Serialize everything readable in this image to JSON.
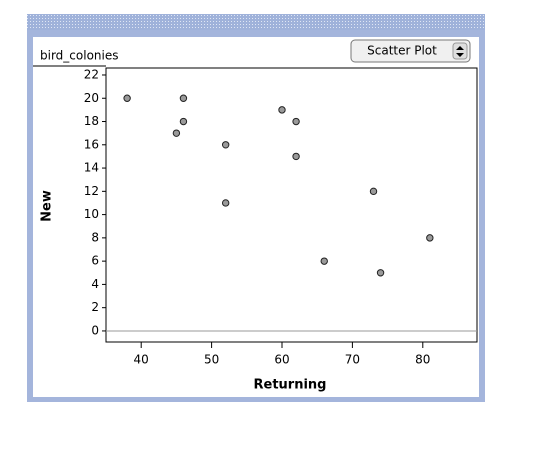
{
  "chart_data": {
    "type": "scatter",
    "title": "bird_colonies",
    "menu": "Scatter Plot",
    "xlabel": "Returning",
    "ylabel": "New",
    "x": [
      38,
      46,
      46,
      45,
      52,
      52,
      60,
      62,
      62,
      66,
      73,
      74,
      81
    ],
    "values": [
      20,
      20,
      18,
      17,
      16,
      11,
      19,
      18,
      15,
      6,
      12,
      5,
      8
    ],
    "color": "#9a9a9a",
    "label_color": "#a3217f",
    "xlim": [
      35,
      87.7
    ],
    "ylim": [
      -0.95,
      22.6
    ],
    "xticks": [
      40,
      50,
      60,
      70,
      80
    ],
    "yticks": [
      0,
      2,
      4,
      6,
      8,
      10,
      12,
      14,
      16,
      18,
      20,
      22
    ],
    "zero_line": true
  }
}
